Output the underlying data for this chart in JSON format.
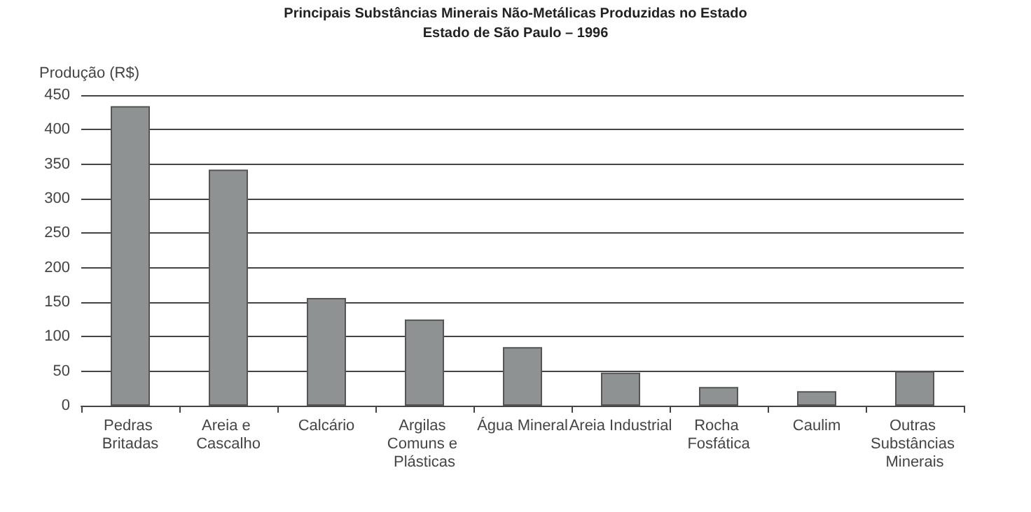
{
  "chart_data": {
    "type": "bar",
    "title": "Principais Substâncias Minerais Não-Metálicas Produzidas no Estado",
    "subtitle": "Estado de São Paulo – 1996",
    "ylabel": "Produção (R$)",
    "categories": [
      "Pedras Britadas",
      "Areia e Cascalho",
      "Calcário",
      "Argilas Comuns e Plásticas",
      "Água Mineral",
      "Areia Industrial",
      "Rocha Fosfática",
      "Caulim",
      "Outras Substâncias Minerais"
    ],
    "values": [
      434,
      342,
      156,
      125,
      85,
      48,
      27,
      21,
      50
    ],
    "color": "#8e9293",
    "ylim": [
      0,
      450
    ],
    "yticks": [
      0,
      50,
      100,
      150,
      200,
      250,
      300,
      350,
      400,
      450
    ],
    "grid": "y"
  }
}
